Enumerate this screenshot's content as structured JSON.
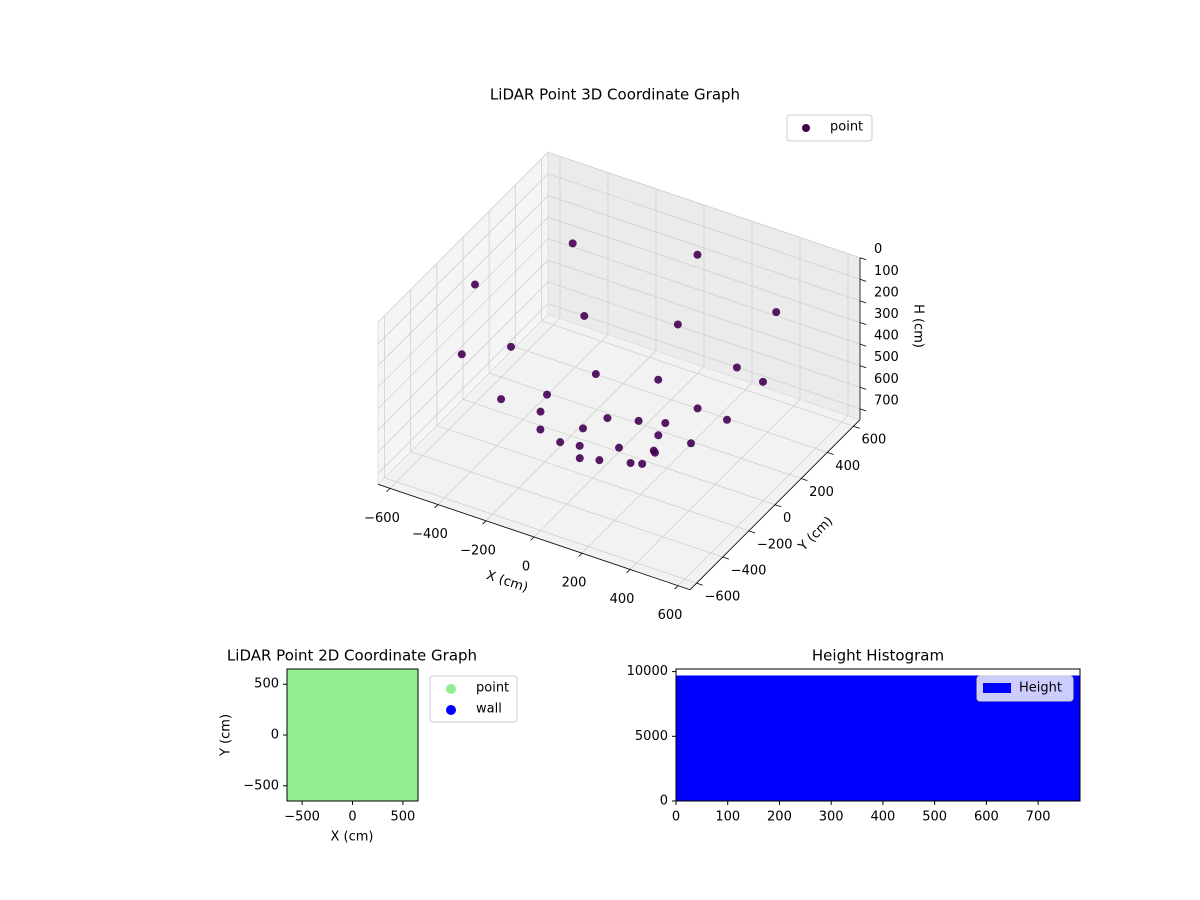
{
  "chart_data": [
    {
      "type": "scatter3d",
      "title": "LiDAR Point 3D Coordinate Graph",
      "xlabel": "X (cm)",
      "ylabel": "Y (cm)",
      "zlabel": "H (cm)",
      "xlim": [
        -650,
        650
      ],
      "ylim": [
        -650,
        650
      ],
      "zlim": [
        750,
        0
      ],
      "xticks": [
        {
          "value": -600,
          "label": "−600"
        },
        {
          "value": -400,
          "label": "−400"
        },
        {
          "value": -200,
          "label": "−200"
        },
        0,
        200,
        400,
        600
      ],
      "yticks": [
        {
          "value": -600,
          "label": "−600"
        },
        {
          "value": -400,
          "label": "−400"
        },
        {
          "value": -200,
          "label": "−200"
        },
        0,
        200,
        400,
        600
      ],
      "zticks": [
        0,
        100,
        200,
        300,
        400,
        500,
        600,
        700
      ],
      "legend": "upper right",
      "series": [
        {
          "name": "point",
          "color": "#440154",
          "x": [
            600,
            424,
            0,
            -424,
            -600,
            -424,
            0,
            424,
            450,
            318,
            0,
            -318,
            -450,
            -318,
            0,
            318,
            300,
            212,
            0,
            -212,
            -300,
            -212,
            0,
            212,
            150,
            106,
            0,
            -106,
            -150,
            -106,
            0,
            106,
            0
          ],
          "y": [
            0,
            424,
            600,
            424,
            0,
            -424,
            -600,
            -424,
            0,
            318,
            450,
            318,
            0,
            -318,
            -450,
            -318,
            0,
            212,
            300,
            212,
            0,
            -212,
            -300,
            -212,
            0,
            106,
            150,
            106,
            0,
            -106,
            -150,
            -106,
            0
          ],
          "z": [
            200,
            200,
            200,
            200,
            200,
            200,
            200,
            200,
            432,
            432,
            432,
            432,
            432,
            432,
            432,
            432,
            597,
            597,
            597,
            597,
            597,
            597,
            597,
            597,
            697,
            697,
            697,
            697,
            697,
            697,
            697,
            697,
            730
          ]
        }
      ]
    },
    {
      "type": "scatter",
      "title": "LiDAR Point 2D Coordinate Graph",
      "xlabel": "X (cm)",
      "ylabel": "Y (cm)",
      "xlim": [
        -650,
        650
      ],
      "ylim": [
        -650,
        650
      ],
      "xticks": [
        {
          "value": -500,
          "label": "−500"
        },
        0,
        500
      ],
      "yticks": [
        {
          "value": -500,
          "label": "−500"
        },
        0,
        500
      ],
      "legend": "outside right",
      "series": [
        {
          "name": "point",
          "color": "#90ee90",
          "x": [
            -600,
            -400,
            -200,
            0,
            200,
            400,
            600,
            -600,
            -400,
            -200,
            0,
            200,
            400,
            600,
            -600,
            -400,
            -200,
            0,
            200,
            400,
            600,
            -600,
            -400,
            -200,
            0,
            200,
            400,
            600,
            -600,
            -400,
            -200,
            0,
            200,
            400,
            600,
            -600,
            -400,
            -200,
            0,
            200,
            400,
            600,
            -600,
            -400,
            -200,
            0,
            200,
            400,
            600
          ],
          "y": [
            -600,
            -600,
            -600,
            -600,
            -600,
            -600,
            -600,
            -400,
            -400,
            -400,
            -400,
            -400,
            -400,
            -400,
            -200,
            -200,
            -200,
            -200,
            -200,
            -200,
            -200,
            0,
            0,
            0,
            0,
            0,
            0,
            0,
            200,
            200,
            200,
            200,
            200,
            200,
            200,
            400,
            400,
            400,
            400,
            400,
            400,
            400,
            600,
            600,
            600,
            600,
            600,
            600,
            600
          ]
        },
        {
          "name": "wall",
          "color": "#0000ff",
          "x": [],
          "y": []
        }
      ]
    },
    {
      "type": "histogram",
      "title": "Height Histogram",
      "xlim": [
        0,
        781
      ],
      "ylim": [
        0,
        10200
      ],
      "xticks": [
        0,
        100,
        200,
        300,
        400,
        500,
        600,
        700
      ],
      "yticks": [
        0,
        5000,
        10000
      ],
      "legend": "upper right",
      "series": [
        {
          "name": "Height",
          "color": "#0000ff",
          "bins": [
            0,
            781
          ],
          "counts": [
            9700
          ]
        }
      ]
    }
  ]
}
